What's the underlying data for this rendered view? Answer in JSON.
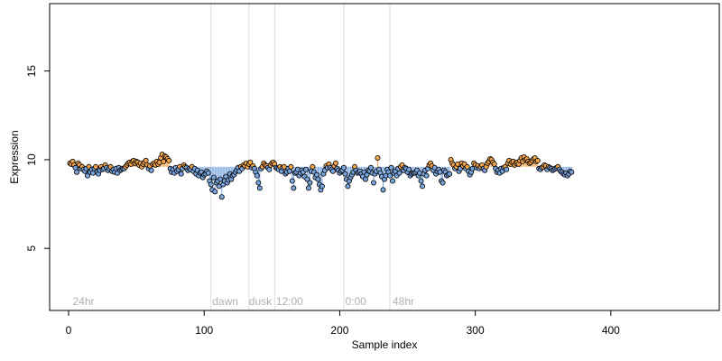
{
  "chart_data": {
    "type": "scatter",
    "title": "",
    "xlabel": "Sample index",
    "ylabel": "Expression",
    "xlim": [
      -14,
      480
    ],
    "ylim": [
      1.5,
      18.8
    ],
    "x_ticks": [
      0,
      100,
      200,
      300,
      400
    ],
    "y_ticks": [
      5,
      10,
      15
    ],
    "grid": false,
    "legend": "none",
    "baseline": 9.6,
    "colors": {
      "above_baseline": "#f5a54a",
      "below_baseline": "#7aa6e0",
      "point_edge": "#000000",
      "vertical_marker_line": "#dddddd",
      "annotation_text": "#b0b0b0"
    },
    "vertical_markers": [
      105,
      133,
      152,
      203,
      237
    ],
    "annotations": [
      {
        "x": 3,
        "text": "24hr"
      },
      {
        "x": 106,
        "text": "dawn"
      },
      {
        "x": 133,
        "text": "dusk"
      },
      {
        "x": 153,
        "text": "12:00"
      },
      {
        "x": 204,
        "text": "0:00"
      },
      {
        "x": 239,
        "text": "48hr"
      }
    ],
    "series": [
      {
        "x_start": 1,
        "x_step": 1,
        "y": [
          9.8,
          9.75,
          9.9,
          9.7,
          9.55,
          9.3,
          9.8,
          9.7,
          9.5,
          9.6,
          9.45,
          9.35,
          9.5,
          9.1,
          9.6,
          9.3,
          9.45,
          9.25,
          9.5,
          9.6,
          9.3,
          9.2,
          9.4,
          9.6,
          9.45,
          9.5,
          9.7,
          9.55,
          9.4,
          9.5,
          9.6,
          9.35,
          9.45,
          9.3,
          9.5,
          9.25,
          9.55,
          9.4,
          9.45,
          9.5,
          9.5,
          9.6,
          9.7,
          9.8,
          9.85,
          9.75,
          9.9,
          9.95,
          9.8,
          9.9,
          9.85,
          9.7,
          9.8,
          9.6,
          9.75,
          9.85,
          9.95,
          9.7,
          9.5,
          9.65,
          9.4,
          9.75,
          9.8,
          9.7,
          9.9,
          9.75,
          9.85,
          10.1,
          10.3,
          9.9,
          10.2,
          10.15,
          10.05,
          9.95,
          9.5,
          9.3,
          9.45,
          9.25,
          9.55,
          9.35,
          9.45,
          9.6,
          9.2,
          9.5,
          9.7,
          9.6,
          9.55,
          9.4,
          9.5,
          9.45,
          9.6,
          9.35,
          9.5,
          9.2,
          9.4,
          9.1,
          9.25,
          9.3,
          9.0,
          9.15,
          9.2,
          9.35,
          9.25,
          8.8,
          8.6,
          8.3,
          9.0,
          8.2,
          8.7,
          8.8,
          8.5,
          8.9,
          7.9,
          8.6,
          8.8,
          9.05,
          8.7,
          8.85,
          9.2,
          8.9,
          9.1,
          9.15,
          9.3,
          9.4,
          9.55,
          9.35,
          9.6,
          9.5,
          9.7,
          9.65,
          9.8,
          9.6,
          9.75,
          9.85,
          9.55,
          9.65,
          9.5,
          9.3,
          9.1,
          8.7,
          8.4,
          9.5,
          9.6,
          9.8,
          9.7,
          9.65,
          9.55,
          9.45,
          9.7,
          9.8,
          9.85,
          9.75,
          9.55,
          9.5,
          9.45,
          9.6,
          9.35,
          9.55,
          9.6,
          9.2,
          9.3,
          9.5,
          9.35,
          9.6,
          8.8,
          8.4,
          9.25,
          9.3,
          9.45,
          9.1,
          9.25,
          9.4,
          9.3,
          9.05,
          9.45,
          8.9,
          8.4,
          8.7,
          9.35,
          9.6,
          9.3,
          9.0,
          9.15,
          8.9,
          8.6,
          8.3,
          8.5,
          9.2,
          9.4,
          9.65,
          9.55,
          9.75,
          9.55,
          9.45,
          9.35,
          9.65,
          9.8,
          9.5,
          9.4,
          9.25,
          9.35,
          9.4,
          9.55,
          9.2,
          8.9,
          8.5,
          8.8,
          9.0,
          9.15,
          9.3,
          9.6,
          9.4,
          9.25,
          9.3,
          9.35,
          9.2,
          9.05,
          9.3,
          8.9,
          9.15,
          9.4,
          9.35,
          9.55,
          9.25,
          8.7,
          9.2,
          9.35,
          10.1,
          9.45,
          9.25,
          9.05,
          8.3,
          8.9,
          9.1,
          9.45,
          9.3,
          9.1,
          9.55,
          8.8,
          9.25,
          9.35,
          9.1,
          9.5,
          9.25,
          9.6,
          9.7,
          9.4,
          9.55,
          9.5,
          9.3,
          9.45,
          9.1,
          9.2,
          9.25,
          9.25,
          9.3,
          9.4,
          9.1,
          9.25,
          8.8,
          8.5,
          9.2,
          9.4,
          9.1,
          9.5,
          9.7,
          9.8,
          9.65,
          9.4,
          9.55,
          9.2,
          9.35,
          9.45,
          9.3,
          8.8,
          8.7,
          9.4,
          9.3,
          9.1,
          9.15,
          9.2,
          10.0,
          9.8,
          9.7,
          9.5,
          9.6,
          9.75,
          9.35,
          9.5,
          9.8,
          9.65,
          9.75,
          9.5,
          9.6,
          9.35,
          9.15,
          9.3,
          9.5,
          9.8,
          9.7,
          9.55,
          9.65,
          9.5,
          9.6,
          9.7,
          9.5,
          9.4,
          9.6,
          9.8,
          9.9,
          10.05,
          10.0,
          9.85,
          9.75,
          9.5,
          9.3,
          9.4,
          9.25,
          9.5,
          9.35,
          9.55,
          9.6,
          9.45,
          9.8,
          9.95,
          9.75,
          9.85,
          9.9,
          9.7,
          9.8,
          9.85,
          9.75,
          9.95,
          10.1,
          9.9,
          10.15,
          10.0,
          10.05,
          9.9,
          9.8,
          9.85,
          9.95,
          10.05,
          10.1,
          9.9,
          9.95,
          9.5,
          9.45,
          9.55,
          9.6,
          9.7,
          9.65,
          9.45,
          9.6,
          9.55,
          9.5,
          9.4,
          9.45,
          9.5,
          9.55,
          9.6,
          9.45,
          9.35,
          9.3,
          9.2,
          9.15,
          9.25,
          9.1,
          9.2,
          9.35,
          9.3
        ]
      }
    ]
  }
}
